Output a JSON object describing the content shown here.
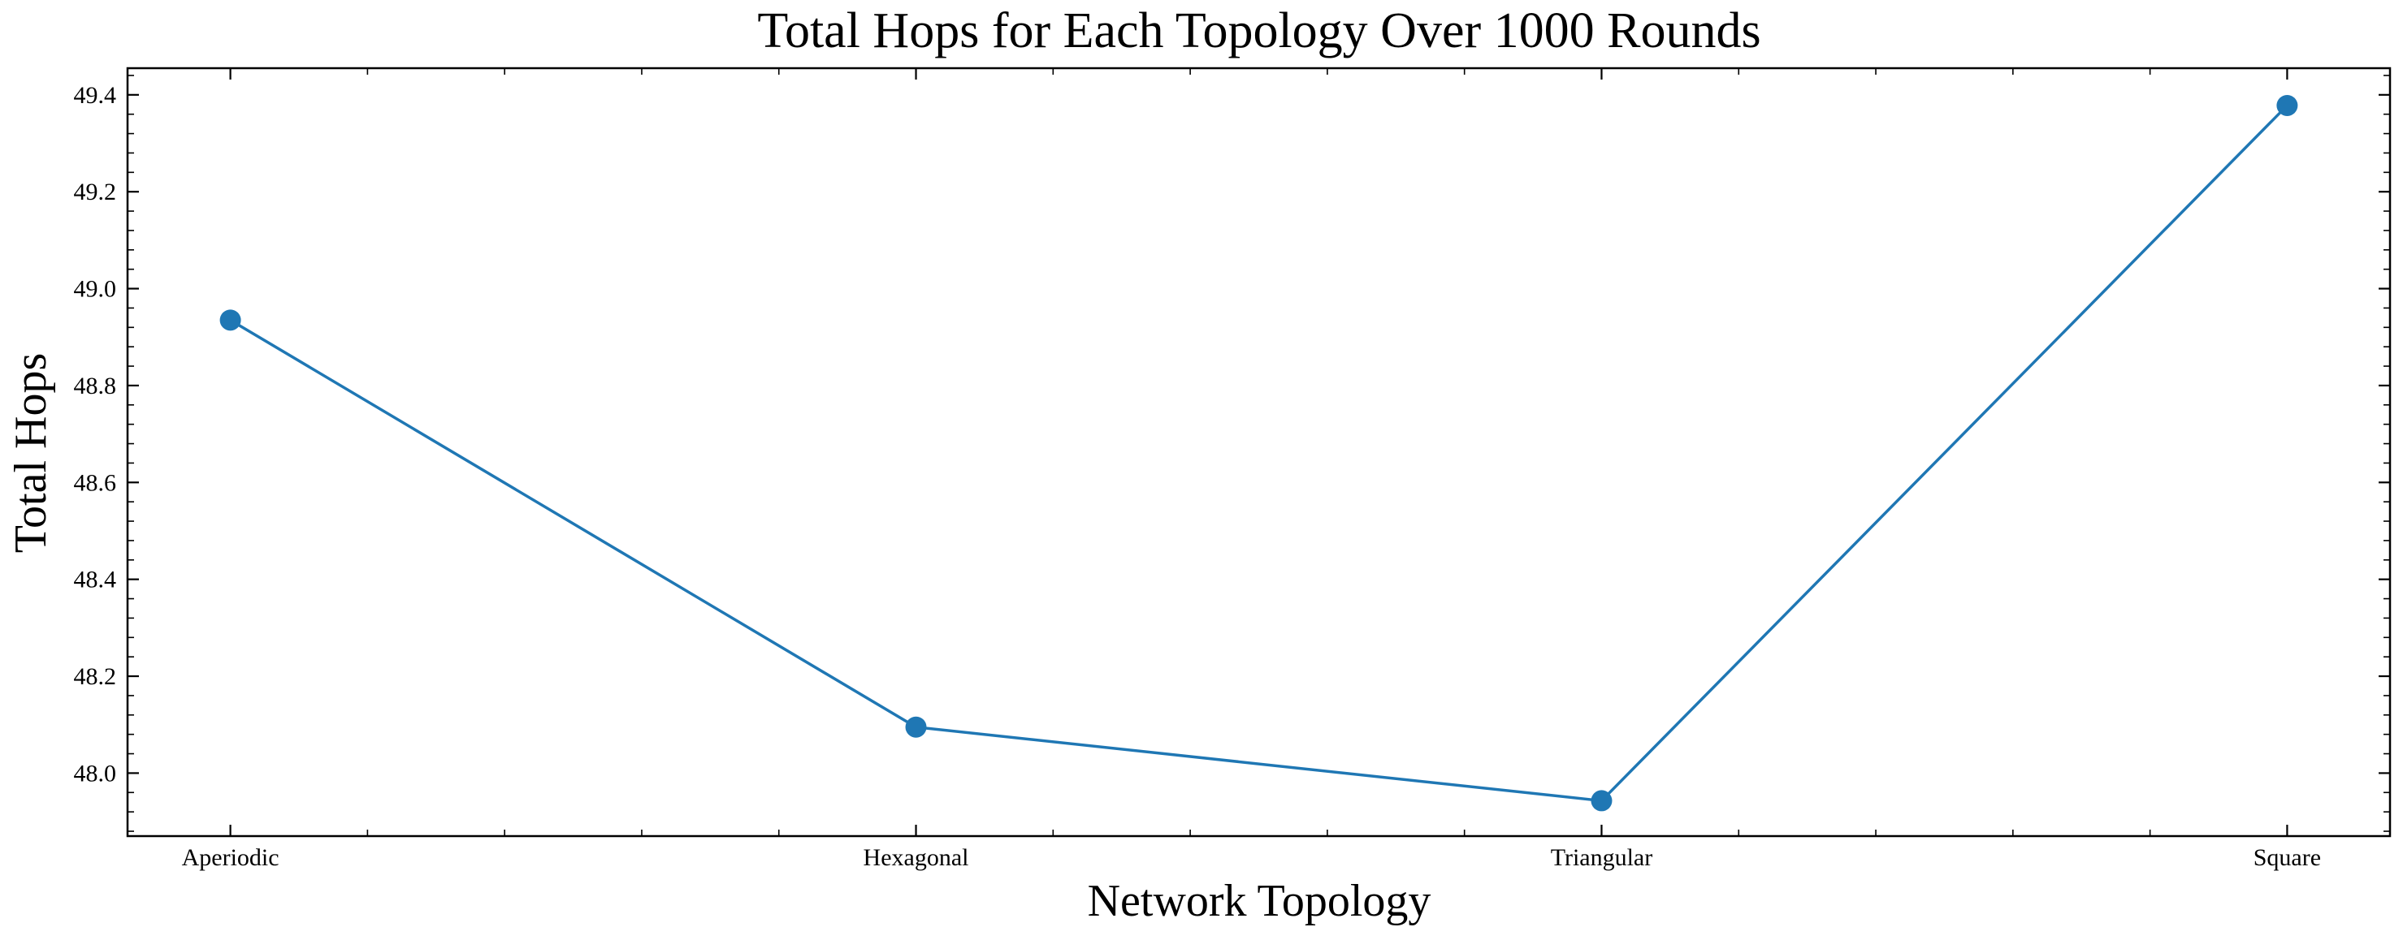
{
  "chart_data": {
    "type": "line",
    "title": "Total Hops for Each Topology Over 1000 Rounds",
    "xlabel": "Network Topology",
    "ylabel": "Total Hops",
    "categories": [
      "Aperiodic",
      "Hexagonal",
      "Triangular",
      "Square"
    ],
    "series": [
      {
        "values": [
          48.935,
          48.095,
          47.943,
          49.378
        ]
      }
    ],
    "ylim": [
      47.87,
      49.455
    ],
    "yticks": [
      48.0,
      48.2,
      48.4,
      48.6,
      48.8,
      49.0,
      49.2,
      49.4
    ],
    "ytick_labels": [
      "48.0",
      "48.2",
      "48.4",
      "48.6",
      "48.8",
      "49.0",
      "49.2",
      "49.4"
    ],
    "grid": false,
    "line_color": "#1f77b4",
    "marker": "circle"
  }
}
